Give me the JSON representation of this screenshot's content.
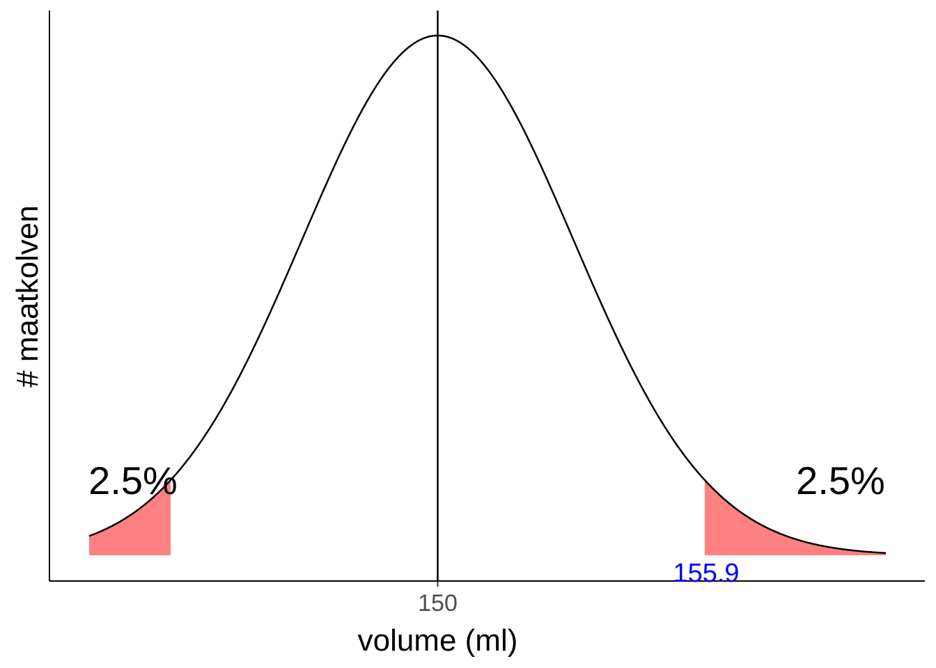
{
  "chart_data": {
    "type": "area",
    "distribution": "normal",
    "mean": 150,
    "sd": 3.0,
    "xlim": [
      142.3,
      159.9
    ],
    "xlabel": "volume (ml)",
    "ylabel": "# maatkolven",
    "x_ticks": [
      150
    ],
    "x_tick_labels": [
      "150"
    ],
    "grid": false,
    "mean_line": 150,
    "tails": [
      {
        "from": 142.3,
        "to": 144.1,
        "label": "2.5%",
        "color": "#ff8080"
      },
      {
        "from": 155.9,
        "to": 159.9,
        "label": "2.5%",
        "color": "#ff8080"
      }
    ],
    "critical_value": {
      "x": 155.9,
      "label": "155.9",
      "color": "#0000ff"
    },
    "curve_color": "#000000"
  }
}
